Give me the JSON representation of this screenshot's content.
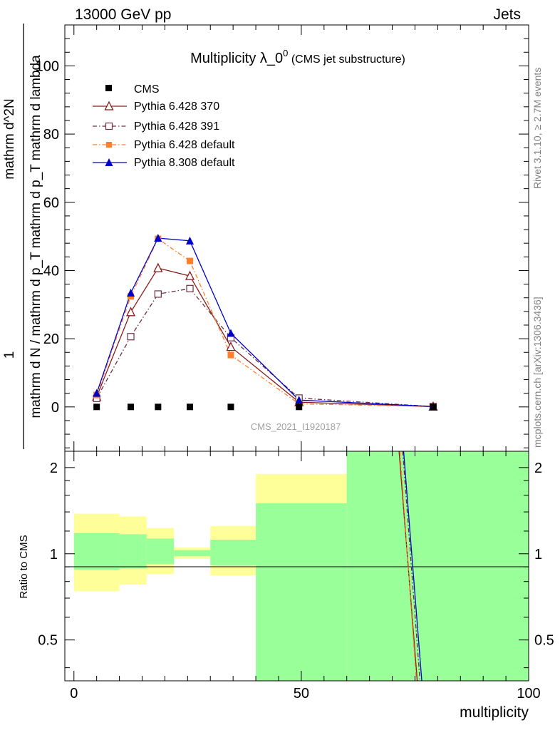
{
  "header": {
    "left": "13000 GeV pp",
    "right": "Jets"
  },
  "title": {
    "main": "Multiplicity λ_0",
    "sup": "0",
    "sub": " (CMS jet substructure)"
  },
  "side": {
    "top": "Rivet 3.1.10, ≥ 2.7M events",
    "bottom": "mcplots.cern.ch [arXiv:1306.3436]"
  },
  "watermark": "CMS_2021_I1920187",
  "ylabel_main": {
    "num": "1",
    "den": "mathrm d N / mathrm d p_T mathrm d p_T mathrm d lambda",
    "dn": "mathrm d^2N"
  },
  "ylabel_ratio": "Ratio to CMS",
  "xlabel": "multiplicity",
  "colors": {
    "cms": "#000000",
    "py6_370": "#8b1a1a",
    "py6_391": "#6b3040",
    "py6_default": "#ff7f2a",
    "py8_default": "#0000cc",
    "band_inner": "#99ff99",
    "band_outer": "#ffff99"
  },
  "chart_data": [
    {
      "type": "line",
      "title": "Multiplicity λ_0^0 (CMS jet substructure)",
      "xlabel": "multiplicity",
      "ylabel": "1 / (mathrm d N / mathrm d p_T mathrm d p_T mathrm d lambda) · mathrm d^2N",
      "xlim": [
        -2,
        100
      ],
      "ylim": [
        -13,
        112
      ],
      "xticks": [
        0,
        50,
        100
      ],
      "yticks": [
        0,
        20,
        40,
        60,
        80,
        100
      ],
      "legend_position": "top-left",
      "series": [
        {
          "name": "CMS",
          "marker": "filled-square",
          "x": [
            5,
            12.5,
            18.5,
            25.5,
            34.5,
            49.5,
            79
          ],
          "y": [
            0,
            0,
            0,
            0,
            0,
            0,
            0
          ]
        },
        {
          "name": "Pythia 6.428 370",
          "marker": "open-triangle",
          "line": "solid",
          "x": [
            5,
            12.5,
            18.5,
            25.5,
            34.5,
            49.5,
            79
          ],
          "y": [
            3.0,
            27.8,
            40.7,
            38.4,
            17.6,
            1.4,
            0.1
          ]
        },
        {
          "name": "Pythia 6.428 391",
          "marker": "open-square",
          "line": "dash-dot",
          "x": [
            5,
            12.5,
            18.5,
            25.5,
            34.5,
            49.5,
            79
          ],
          "y": [
            2.5,
            20.6,
            33.1,
            34.7,
            20.3,
            2.6,
            0.1
          ]
        },
        {
          "name": "Pythia 6.428 default",
          "marker": "filled-square",
          "line": "dash-dot",
          "x": [
            5,
            12.5,
            18.5,
            25.5,
            34.5,
            49.5,
            79
          ],
          "y": [
            3.5,
            32.4,
            49.3,
            42.8,
            15.2,
            0.9,
            0.1
          ]
        },
        {
          "name": "Pythia 8.308 default",
          "marker": "filled-triangle",
          "line": "solid",
          "x": [
            5,
            12.5,
            18.5,
            25.5,
            34.5,
            49.5,
            79
          ],
          "y": [
            4.0,
            33.4,
            49.5,
            48.7,
            21.6,
            2.0,
            0.1
          ]
        }
      ]
    },
    {
      "type": "area",
      "ylabel": "Ratio to CMS",
      "xlabel": "multiplicity",
      "xlim": [
        -2,
        100
      ],
      "ylim": [
        0.36,
        2.28
      ],
      "yscale": "log",
      "yticks": [
        0.5,
        1,
        2
      ],
      "xticks": [
        0,
        50,
        100
      ],
      "bands": [
        {
          "x0": 0,
          "x1": 10,
          "inner": [
            0.88,
            1.18
          ],
          "outer": [
            0.74,
            1.38
          ]
        },
        {
          "x0": 10,
          "x1": 16,
          "inner": [
            0.89,
            1.17
          ],
          "outer": [
            0.78,
            1.35
          ]
        },
        {
          "x0": 16,
          "x1": 22,
          "inner": [
            0.92,
            1.13
          ],
          "outer": [
            0.85,
            1.23
          ]
        },
        {
          "x0": 22,
          "x1": 30,
          "inner": [
            0.98,
            1.03
          ],
          "outer": [
            0.96,
            1.05
          ]
        },
        {
          "x0": 30,
          "x1": 40,
          "inner": [
            0.91,
            1.12
          ],
          "outer": [
            0.84,
            1.25
          ]
        },
        {
          "x0": 40,
          "x1": 60,
          "inner": [
            0.36,
            1.5
          ],
          "outer": [
            0.36,
            1.9
          ]
        },
        {
          "x0": 60,
          "x1": 100,
          "inner": [
            0.36,
            2.28
          ],
          "outer": [
            0.36,
            2.28
          ]
        }
      ],
      "series": [
        {
          "name": "Pythia 6.428 370",
          "x": [
            71.5,
            75.5
          ],
          "y": [
            2.28,
            0.36
          ]
        },
        {
          "name": "Pythia 6.428 391",
          "x": [
            72.3,
            76.1
          ],
          "y": [
            2.28,
            0.36
          ]
        },
        {
          "name": "Pythia 6.428 default",
          "x": [
            71.7,
            75.3
          ],
          "y": [
            2.28,
            0.36
          ]
        },
        {
          "name": "Pythia 8.308 default",
          "x": [
            72.5,
            76.5
          ],
          "y": [
            2.28,
            0.36
          ]
        }
      ],
      "reference_line": 1
    }
  ]
}
